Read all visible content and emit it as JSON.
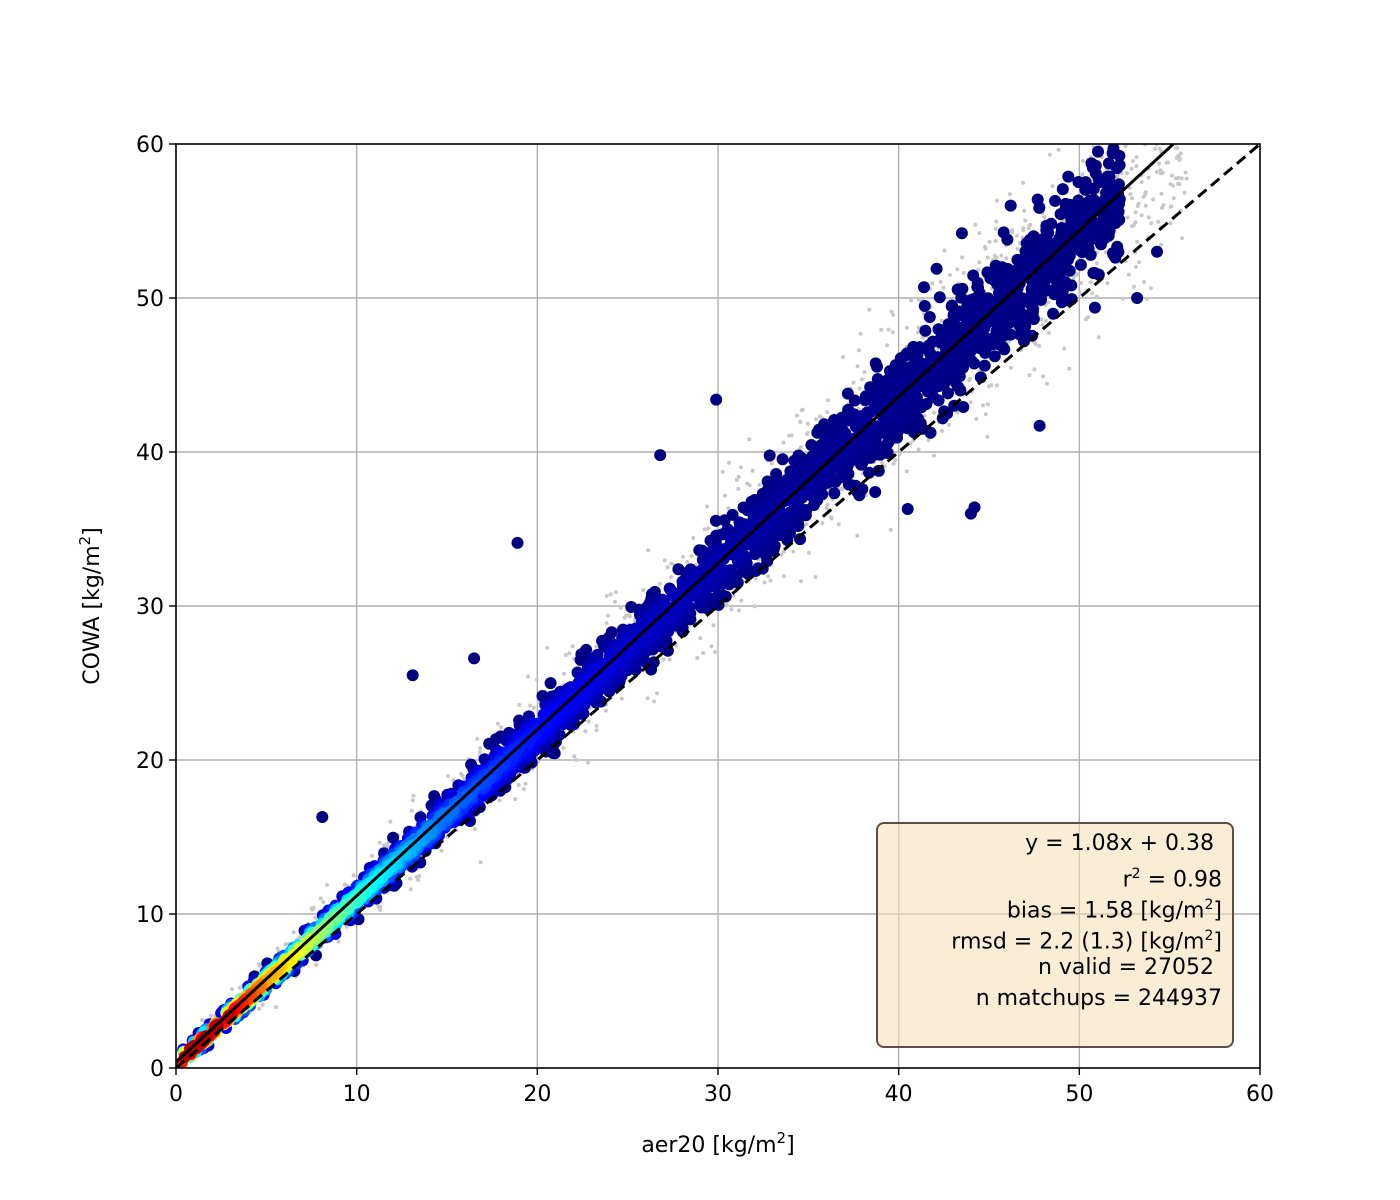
{
  "chart_data": {
    "type": "scatter",
    "xlabel": "aer20 [kg/m²]",
    "ylabel": "COWA [kg/m²]",
    "xlim": [
      0,
      60
    ],
    "ylim": [
      0,
      60
    ],
    "xticks": [
      0,
      10,
      20,
      30,
      40,
      50,
      60
    ],
    "yticks": [
      0,
      10,
      20,
      30,
      40,
      50,
      60
    ],
    "xtick_labels": [
      "0",
      "10",
      "20",
      "30",
      "40",
      "50",
      "60"
    ],
    "ytick_labels": [
      "0",
      "10",
      "20",
      "30",
      "40",
      "50",
      "60"
    ],
    "grid": true,
    "colormap": "jet (point density)",
    "fit_line": {
      "slope": 1.08,
      "intercept": 0.38,
      "style": "solid",
      "color": "#000000"
    },
    "identity_line": {
      "slope": 1.0,
      "intercept": 0.0,
      "style": "dashed",
      "color": "#000000"
    },
    "background_points_color": "#c8c8c8",
    "outlier_points": [
      [
        18.9,
        34.1
      ],
      [
        8.1,
        16.3
      ],
      [
        13.1,
        25.5
      ],
      [
        16.5,
        26.6
      ],
      [
        29.9,
        43.4
      ],
      [
        26.8,
        39.8
      ],
      [
        44.2,
        36.4
      ],
      [
        47.8,
        41.7
      ],
      [
        41.4,
        50.7
      ],
      [
        46.2,
        56.0
      ],
      [
        50.8,
        57.1
      ],
      [
        51.4,
        55.4
      ],
      [
        54.3,
        53.0
      ],
      [
        53.2,
        50.0
      ],
      [
        49.0,
        54.2
      ],
      [
        43.5,
        54.2
      ],
      [
        42.1,
        51.9
      ],
      [
        44.0,
        36.0
      ],
      [
        38.7,
        37.4
      ],
      [
        40.5,
        36.3
      ]
    ],
    "stats": {
      "equation": "y = 1.08x + 0.38",
      "r2_label": "r",
      "r2_sup": "2",
      "r2_value": " = 0.98",
      "bias_label": "bias = 1.58 [kg/m",
      "bias_sup": "2",
      "bias_end": "]",
      "rmsd_label": "rmsd = 2.2 (1.3) [kg/m",
      "rmsd_sup": "2",
      "rmsd_end": "]",
      "n_valid": "n valid = 27052",
      "n_matchups": "n matchups = 244937"
    },
    "legend_placement": "lower-right"
  },
  "labels": {
    "xlabel_main": "aer20 [kg/m",
    "xlabel_sup": "2",
    "xlabel_end": "]",
    "ylabel_main": "COWA [kg/m",
    "ylabel_sup": "2",
    "ylabel_end": "]"
  }
}
